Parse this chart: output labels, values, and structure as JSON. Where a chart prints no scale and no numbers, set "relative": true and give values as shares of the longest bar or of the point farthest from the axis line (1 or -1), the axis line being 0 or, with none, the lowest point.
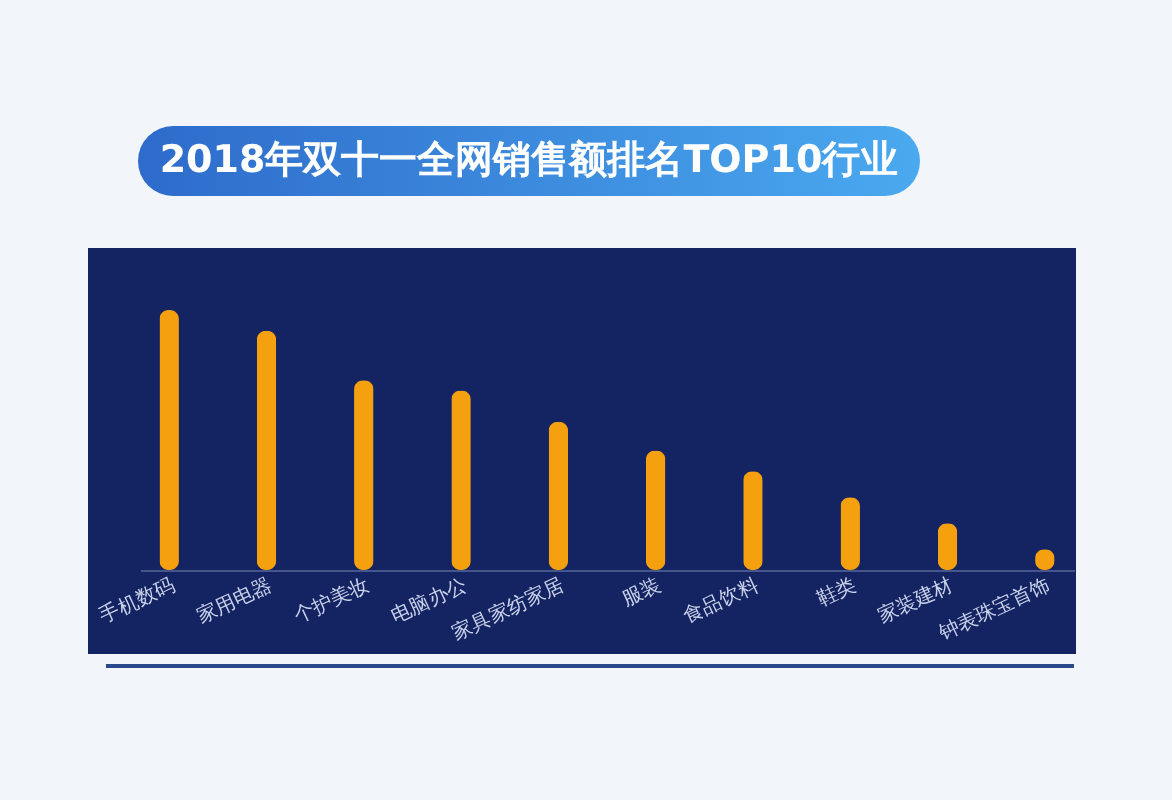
{
  "chart_data": {
    "type": "bar",
    "title": "2018年双十一全网销售额排名TOP10行业",
    "categories": [
      "手机数码",
      "家用电器",
      "个护美妆",
      "电脑办公",
      "家具家纺家居",
      "服装",
      "食品饮料",
      "鞋类",
      "家装建材",
      "钟表珠宝首饰"
    ],
    "values": [
      1,
      0.92,
      0.73,
      0.69,
      0.57,
      0.46,
      0.38,
      0.28,
      0.18,
      0.08
    ],
    "color": "#f5a10f",
    "relative": true
  }
}
